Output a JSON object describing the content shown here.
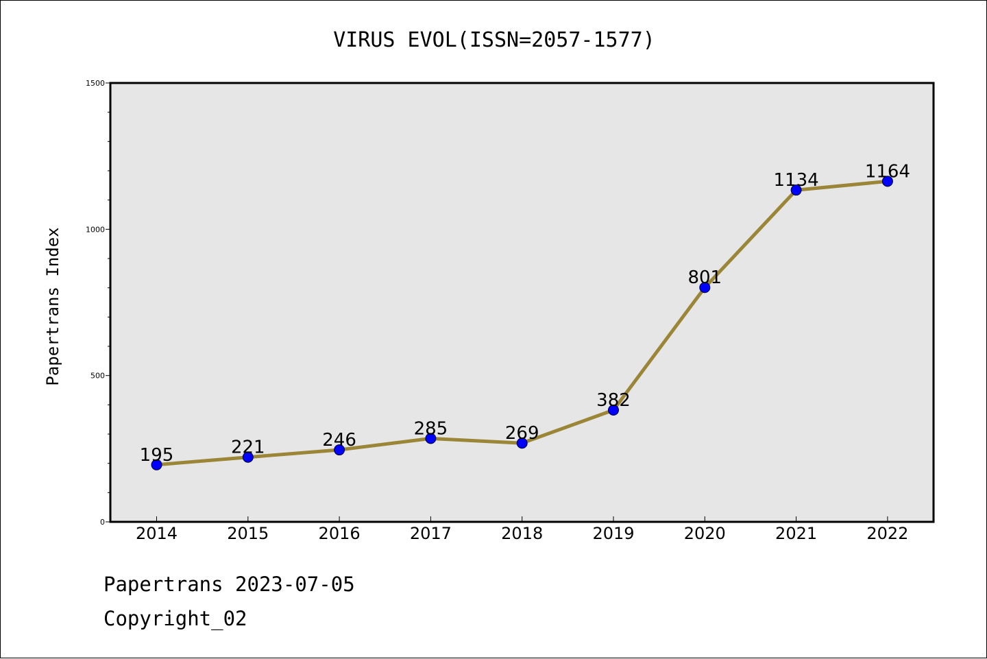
{
  "chart_data": {
    "type": "line",
    "title": "VIRUS EVOL(ISSN=2057-1577)",
    "xlabel": "",
    "ylabel": "Papertrans Index",
    "categories": [
      "2014",
      "2015",
      "2016",
      "2017",
      "2018",
      "2019",
      "2020",
      "2021",
      "2022"
    ],
    "values": [
      195,
      221,
      246,
      285,
      269,
      382,
      801,
      1134,
      1164
    ],
    "ylim": [
      0,
      1500
    ],
    "yticks": [
      0,
      500,
      1000,
      1500
    ],
    "grid": false,
    "line_color": "#9b8537",
    "marker_color": "#0000ff",
    "background_color": "#e6e6e6"
  },
  "footer": {
    "line1": "Papertrans 2023-07-05",
    "line2": "Copyright_02"
  }
}
